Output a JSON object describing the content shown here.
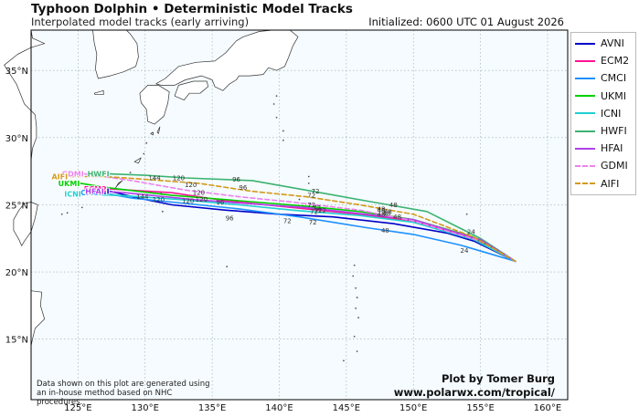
{
  "header": {
    "title": "Typhoon Dolphin • Deterministic Model Tracks",
    "subtitle": "Interpolated model tracks (early arriving)",
    "initialized": "Initialized: 0600 UTC 01 August 2026"
  },
  "map": {
    "lon_range": [
      121.5,
      161.5
    ],
    "lat_range": [
      10.5,
      38.0
    ],
    "lon_ticks": [
      125,
      130,
      135,
      140,
      145,
      150,
      155,
      160
    ],
    "lon_tick_labels": [
      "125°E",
      "130°E",
      "135°E",
      "140°E",
      "145°E",
      "150°E",
      "155°E",
      "160°E"
    ],
    "lat_ticks": [
      15,
      20,
      25,
      30,
      35
    ],
    "lat_tick_labels": [
      "15°N",
      "20°N",
      "25°N",
      "30°N",
      "35°N"
    ],
    "land_color": "#ffffff",
    "ocean_color": "#f5fbfe",
    "grid": "dotted"
  },
  "tracks": [
    {
      "name": "AVNI",
      "color": "#0000c8",
      "dash": false,
      "points": [
        [
          157.6,
          20.8
        ],
        [
          154.5,
          22.3
        ],
        [
          152.5,
          22.9
        ],
        [
          148.5,
          23.6
        ],
        [
          144.0,
          24.1
        ],
        [
          140.0,
          24.3
        ],
        [
          136.0,
          24.6
        ],
        [
          132.0,
          25.0
        ],
        [
          129.5,
          25.5
        ],
        [
          127.4,
          26.0
        ]
      ],
      "labels": [
        [
          "24",
          154.3,
          23.0
        ],
        [
          "72",
          140.6,
          23.8
        ],
        [
          "96",
          136.3,
          24.0
        ]
      ]
    },
    {
      "name": "ECM2",
      "color": "#ff1493",
      "dash": false,
      "points": [
        [
          157.6,
          20.8
        ],
        [
          154.5,
          22.5
        ],
        [
          150.0,
          23.8
        ],
        [
          146.0,
          24.3
        ],
        [
          141.0,
          24.8
        ],
        [
          136.0,
          25.3
        ],
        [
          132.0,
          25.9
        ],
        [
          127.2,
          26.2
        ]
      ],
      "labels": [
        [
          "48",
          147.6,
          24.3
        ],
        [
          "72",
          142.6,
          24.5
        ]
      ]
    },
    {
      "name": "CMCI",
      "color": "#1e90ff",
      "dash": false,
      "points": [
        [
          157.6,
          20.8
        ],
        [
          153.5,
          22.0
        ],
        [
          150.0,
          22.8
        ],
        [
          146.5,
          23.3
        ],
        [
          141.5,
          24.1
        ],
        [
          137.0,
          24.7
        ],
        [
          132.0,
          25.2
        ],
        [
          129.0,
          25.5
        ],
        [
          126.8,
          25.9
        ]
      ],
      "labels": [
        [
          "24",
          153.8,
          21.6
        ],
        [
          "48",
          147.9,
          23.1
        ],
        [
          "72",
          142.5,
          23.7
        ],
        [
          "120",
          131.0,
          25.4
        ],
        [
          "144",
          129.8,
          25.6
        ]
      ]
    },
    {
      "name": "UKMI",
      "color": "#00d000",
      "dash": false,
      "points": [
        [
          157.6,
          20.8
        ],
        [
          154.5,
          22.6
        ],
        [
          150.0,
          23.9
        ],
        [
          146.0,
          24.5
        ],
        [
          142.0,
          24.9
        ],
        [
          137.0,
          25.3
        ],
        [
          132.0,
          25.7
        ],
        [
          127.0,
          26.3
        ],
        [
          125.2,
          26.6
        ]
      ],
      "labels": [
        [
          "48",
          148.0,
          24.4
        ],
        [
          "72",
          142.9,
          24.6
        ]
      ]
    },
    {
      "name": "ICNI",
      "color": "#20d0d0",
      "dash": false,
      "points": [
        [
          157.6,
          20.8
        ],
        [
          154.5,
          22.4
        ],
        [
          150.0,
          23.7
        ],
        [
          146.0,
          24.2
        ],
        [
          141.0,
          24.6
        ],
        [
          137.0,
          25.0
        ],
        [
          132.5,
          25.4
        ],
        [
          128.0,
          25.7
        ],
        [
          125.3,
          25.8
        ]
      ],
      "labels": [
        [
          "48",
          148.8,
          24.1
        ],
        [
          "72",
          143.2,
          24.6
        ],
        [
          "120",
          133.2,
          25.3
        ]
      ]
    },
    {
      "name": "HWFI",
      "color": "#3cb371",
      "dash": false,
      "points": [
        [
          157.6,
          20.8
        ],
        [
          155.0,
          22.5
        ],
        [
          151.0,
          24.5
        ],
        [
          147.0,
          25.2
        ],
        [
          142.5,
          26.0
        ],
        [
          138.0,
          26.8
        ],
        [
          133.0,
          27.0
        ],
        [
          130.0,
          27.2
        ],
        [
          127.4,
          27.3
        ]
      ],
      "labels": [
        [
          "48",
          148.5,
          25.0
        ],
        [
          "72",
          142.7,
          26.0
        ],
        [
          "96",
          136.8,
          26.9
        ],
        [
          "120",
          132.5,
          27.0
        ]
      ]
    },
    {
      "name": "HFAI",
      "color": "#b040e8",
      "dash": false,
      "points": [
        [
          157.6,
          20.8
        ],
        [
          155.0,
          22.4
        ],
        [
          150.0,
          23.9
        ],
        [
          146.5,
          24.3
        ],
        [
          142.0,
          24.8
        ],
        [
          137.5,
          25.1
        ],
        [
          133.5,
          25.4
        ],
        [
          128.5,
          25.9
        ],
        [
          127.0,
          26.0
        ]
      ],
      "labels": [
        [
          "48",
          147.6,
          24.6
        ],
        [
          "72",
          142.8,
          24.8
        ],
        [
          "96",
          135.6,
          25.2
        ],
        [
          "120",
          134.2,
          25.4
        ]
      ]
    },
    {
      "name": "GDMI",
      "color": "#ee82ee",
      "dash": true,
      "points": [
        [
          157.6,
          20.8
        ],
        [
          155.0,
          22.3
        ],
        [
          150.0,
          23.8
        ],
        [
          146.0,
          24.6
        ],
        [
          141.0,
          25.2
        ],
        [
          137.0,
          25.6
        ],
        [
          133.0,
          26.1
        ],
        [
          129.0,
          26.8
        ],
        [
          125.5,
          27.3
        ]
      ],
      "labels": [
        [
          "48",
          148.1,
          24.5
        ],
        [
          "72",
          142.4,
          25.0
        ],
        [
          "120",
          134.0,
          25.9
        ]
      ]
    },
    {
      "name": "AIFI",
      "color": "#d49a1a",
      "dash": true,
      "points": [
        [
          157.6,
          20.8
        ],
        [
          154.5,
          22.6
        ],
        [
          150.0,
          24.3
        ],
        [
          146.0,
          25.0
        ],
        [
          142.0,
          25.6
        ],
        [
          138.0,
          26.0
        ],
        [
          134.0,
          26.6
        ],
        [
          130.0,
          26.9
        ],
        [
          127.0,
          27.1
        ],
        [
          124.3,
          27.1
        ]
      ],
      "labels": [
        [
          "48",
          147.6,
          24.7
        ],
        [
          "72",
          142.4,
          25.7
        ],
        [
          "96",
          137.3,
          26.3
        ],
        [
          "120",
          133.4,
          26.5
        ],
        [
          "144",
          130.7,
          27.0
        ]
      ]
    }
  ],
  "legend": {
    "placement": "right"
  },
  "credit": {
    "line1": "Plot by Tomer Burg",
    "line2": "www.polarwx.com/tropical/"
  },
  "note": {
    "line1": "Data shown on this plot are generated using",
    "line2": "an in-house method based on NHC procedures."
  }
}
